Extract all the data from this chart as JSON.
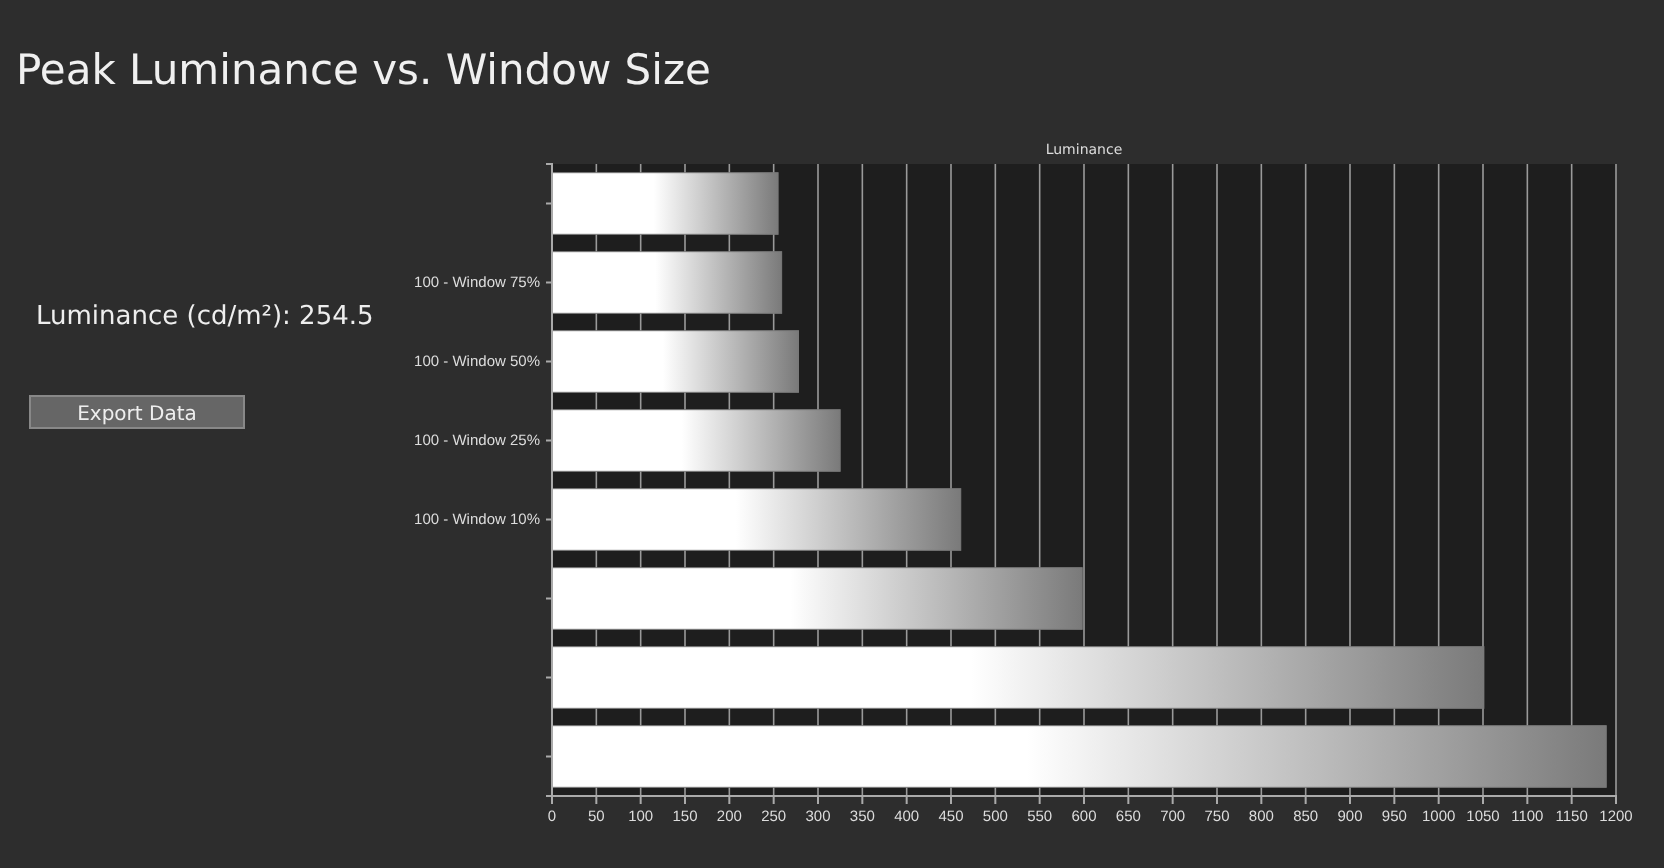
{
  "chart_data": {
    "type": "bar",
    "orientation": "horizontal",
    "title": "Peak Luminance vs. Window Size",
    "xlabel": "Luminance",
    "categories": [
      null,
      "100 - Window 75%",
      "100 - Window 50%",
      "100 - Window 25%",
      "100 - Window 10%",
      null,
      null,
      null
    ],
    "values": [
      255,
      259,
      278,
      325,
      461,
      598,
      1051,
      1189
    ],
    "color": "#7a7a7a",
    "xlim": [
      0,
      1200
    ],
    "xticks": [
      0,
      50,
      100,
      150,
      200,
      250,
      300,
      350,
      400,
      450,
      500,
      550,
      600,
      650,
      700,
      750,
      800,
      850,
      900,
      950,
      1000,
      1050,
      1100,
      1150,
      1200
    ],
    "grid": "x",
    "annotations": [
      "Luminance (cd/m²):  254.5",
      "Export Data"
    ]
  }
}
